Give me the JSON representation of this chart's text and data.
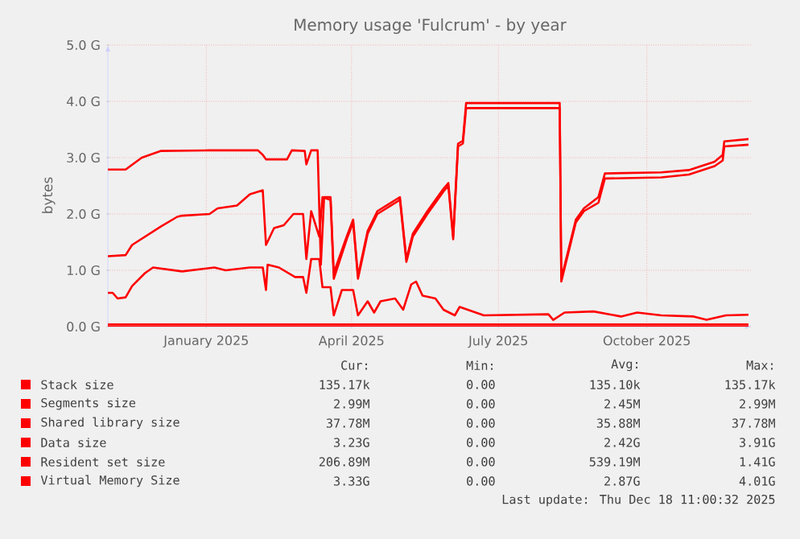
{
  "chart_data": {
    "type": "line",
    "title": "Memory usage 'Fulcrum' - by year",
    "ylabel": "bytes",
    "xlim": [
      "2024-11-16",
      "2025-12-20"
    ],
    "xticks": [
      {
        "value": "2025-01-16",
        "label": "January 2025"
      },
      {
        "value": "2025-04-16",
        "label": "April 2025"
      },
      {
        "value": "2025-07-16",
        "label": "July 2025"
      },
      {
        "value": "2025-10-16",
        "label": "October 2025"
      }
    ],
    "ylim": [
      0,
      5
    ],
    "yticks": [
      {
        "value": 0,
        "label": "0.0 G"
      },
      {
        "value": 1,
        "label": "1.0 G"
      },
      {
        "value": 2,
        "label": "2.0 G"
      },
      {
        "value": 3,
        "label": "3.0 G"
      },
      {
        "value": 4,
        "label": "4.0 G"
      },
      {
        "value": 5,
        "label": "5.0 G"
      }
    ],
    "grid": true,
    "legend": "bottom",
    "series": [
      {
        "name": "Stack size",
        "color": "#ff0000",
        "x": [
          "2024-11-16",
          "2025-12-18"
        ],
        "values": [
          0,
          0
        ]
      },
      {
        "name": "Segments size",
        "color": "#ff0000",
        "x": [
          "2024-11-16",
          "2025-12-18"
        ],
        "values": [
          0,
          0
        ]
      },
      {
        "name": "Shared library size",
        "color": "#ff0000",
        "x": [
          "2024-11-16",
          "2025-12-18"
        ],
        "values": [
          0.04,
          0.04
        ]
      },
      {
        "name": "Data size",
        "color": "#ff0000",
        "x": [
          "2024-11-16",
          "2024-11-27",
          "2024-12-01",
          "2024-12-19",
          "2024-12-29",
          "2025-01-01",
          "2025-01-18",
          "2025-01-23",
          "2025-02-04",
          "2025-02-12",
          "2025-02-20",
          "2025-02-22",
          "2025-02-27",
          "2025-03-05",
          "2025-03-11",
          "2025-03-17",
          "2025-03-19",
          "2025-03-22",
          "2025-03-27",
          "2025-03-29",
          "2025-04-03",
          "2025-04-05",
          "2025-04-13",
          "2025-04-17",
          "2025-04-20",
          "2025-04-26",
          "2025-05-02",
          "2025-05-16",
          "2025-05-20",
          "2025-05-24",
          "2025-06-02",
          "2025-06-12",
          "2025-06-15",
          "2025-06-18",
          "2025-06-21",
          "2025-06-24",
          "2025-06-26",
          "2025-08-23",
          "2025-08-24",
          "2025-09-02",
          "2025-09-07",
          "2025-09-16",
          "2025-09-20",
          "2025-10-25",
          "2025-11-11",
          "2025-11-27",
          "2025-12-02",
          "2025-12-03",
          "2025-12-18"
        ],
        "values": [
          1.25,
          1.27,
          1.45,
          1.78,
          1.95,
          1.97,
          2.0,
          2.1,
          2.15,
          2.35,
          2.42,
          1.45,
          1.75,
          1.8,
          2.0,
          2.0,
          1.2,
          2.05,
          1.6,
          2.3,
          2.25,
          0.85,
          1.55,
          1.85,
          0.85,
          1.65,
          2.0,
          2.25,
          1.15,
          1.6,
          2.0,
          2.4,
          2.5,
          1.55,
          3.2,
          3.25,
          3.88,
          3.88,
          0.8,
          1.85,
          2.05,
          2.2,
          2.63,
          2.65,
          2.7,
          2.85,
          2.95,
          3.2,
          3.23
        ]
      },
      {
        "name": "Resident set size",
        "color": "#ff0000",
        "x": [
          "2024-11-16",
          "2024-11-19",
          "2024-11-22",
          "2024-11-27",
          "2024-12-01",
          "2024-12-09",
          "2024-12-14",
          "2025-01-01",
          "2025-01-21",
          "2025-01-28",
          "2025-02-12",
          "2025-02-20",
          "2025-02-22",
          "2025-02-23",
          "2025-03-02",
          "2025-03-12",
          "2025-03-17",
          "2025-03-19",
          "2025-03-22",
          "2025-03-27",
          "2025-03-29",
          "2025-04-03",
          "2025-04-05",
          "2025-04-10",
          "2025-04-17",
          "2025-04-20",
          "2025-04-26",
          "2025-04-30",
          "2025-05-04",
          "2025-05-13",
          "2025-05-18",
          "2025-05-23",
          "2025-05-26",
          "2025-05-30",
          "2025-06-07",
          "2025-06-12",
          "2025-06-19",
          "2025-06-22",
          "2025-07-07",
          "2025-08-16",
          "2025-08-19",
          "2025-08-26",
          "2025-09-13",
          "2025-09-30",
          "2025-10-10",
          "2025-10-25",
          "2025-11-14",
          "2025-11-22",
          "2025-12-04",
          "2025-12-18"
        ],
        "values": [
          0.6,
          0.6,
          0.5,
          0.52,
          0.72,
          0.95,
          1.05,
          0.98,
          1.05,
          1.0,
          1.05,
          1.05,
          0.65,
          1.1,
          1.05,
          0.88,
          0.88,
          0.6,
          1.2,
          1.2,
          0.7,
          0.7,
          0.2,
          0.65,
          0.65,
          0.2,
          0.45,
          0.25,
          0.45,
          0.5,
          0.3,
          0.75,
          0.8,
          0.55,
          0.5,
          0.3,
          0.2,
          0.35,
          0.2,
          0.22,
          0.12,
          0.25,
          0.27,
          0.18,
          0.25,
          0.2,
          0.18,
          0.12,
          0.2,
          0.21
        ]
      },
      {
        "name": "Virtual Memory Size",
        "color": "#ff0000",
        "x": [
          "2024-11-16",
          "2024-11-27",
          "2024-12-07",
          "2024-12-19",
          "2025-01-18",
          "2025-02-17",
          "2025-02-20",
          "2025-02-22",
          "2025-03-07",
          "2025-03-10",
          "2025-03-18",
          "2025-03-19",
          "2025-03-22",
          "2025-03-26",
          "2025-03-28",
          "2025-03-30",
          "2025-04-03",
          "2025-04-05",
          "2025-04-13",
          "2025-04-17",
          "2025-04-20",
          "2025-04-26",
          "2025-05-02",
          "2025-05-16",
          "2025-05-20",
          "2025-05-24",
          "2025-06-02",
          "2025-06-12",
          "2025-06-15",
          "2025-06-18",
          "2025-06-21",
          "2025-06-24",
          "2025-06-26",
          "2025-08-23",
          "2025-08-24",
          "2025-09-02",
          "2025-09-07",
          "2025-09-16",
          "2025-09-20",
          "2025-10-25",
          "2025-11-11",
          "2025-11-27",
          "2025-12-02",
          "2025-12-03",
          "2025-12-18"
        ],
        "values": [
          2.79,
          2.79,
          3.0,
          3.12,
          3.13,
          3.13,
          3.05,
          2.97,
          2.97,
          3.13,
          3.12,
          2.88,
          3.13,
          3.13,
          1.1,
          2.3,
          2.3,
          0.95,
          1.6,
          1.9,
          0.9,
          1.7,
          2.05,
          2.3,
          1.2,
          1.65,
          2.05,
          2.45,
          2.55,
          1.6,
          3.25,
          3.3,
          3.97,
          3.97,
          0.85,
          1.9,
          2.1,
          2.3,
          2.72,
          2.74,
          2.78,
          2.93,
          3.05,
          3.29,
          3.33
        ]
      }
    ],
    "annotations": [
      "Cur:",
      "Min:",
      "Avg:",
      "Max:",
      "135.17k",
      "0.00",
      "135.10k",
      "135.17k",
      "2.99M",
      "0.00",
      "2.45M",
      "2.99M",
      "37.78M",
      "0.00",
      "35.88M",
      "37.78M",
      "3.23G",
      "0.00",
      "2.42G",
      "3.91G",
      "206.89M",
      "0.00",
      "539.19M",
      "1.41G",
      "3.33G",
      "0.00",
      "2.87G",
      "4.01G",
      "Last update: Thu Dec 18 11:00:32 2025"
    ]
  }
}
